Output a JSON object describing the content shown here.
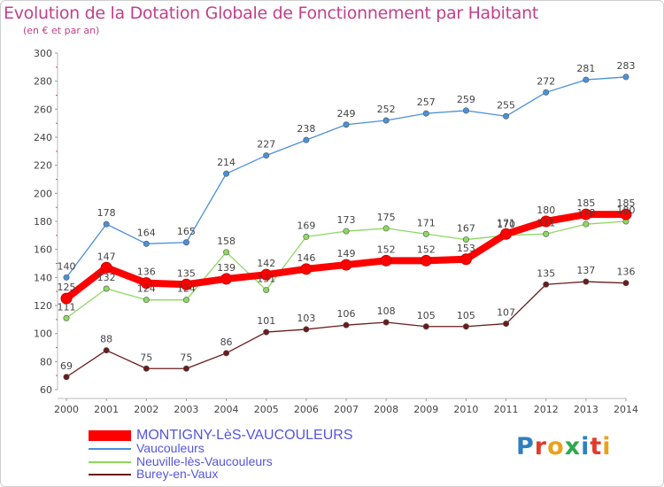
{
  "title": "Evolution de la Dotation Globale de Fonctionnement par Habitant",
  "subtitle": "(en € et par an)",
  "logo": {
    "text": "Proxiti",
    "colors": [
      "#2f7fc2",
      "#e23b2e",
      "#e8a21c",
      "#2fa84f",
      "#2f7fc2",
      "#e23b2e",
      "#e8a21c"
    ]
  },
  "chart_data": {
    "type": "line",
    "x": [
      "2000",
      "2001",
      "2002",
      "2003",
      "2004",
      "2005",
      "2006",
      "2007",
      "2008",
      "2009",
      "2010",
      "2011",
      "2012",
      "2013",
      "2014"
    ],
    "ylim": [
      60,
      300
    ],
    "yticks": [
      60,
      80,
      100,
      120,
      140,
      160,
      180,
      200,
      220,
      240,
      260,
      280,
      300
    ],
    "grid": false,
    "legend_position": "bottom-left",
    "series": [
      {
        "name": "MONTIGNY-LèS-VAUCOULEURS",
        "color": "#ff0000",
        "width": "thick",
        "values": [
          125,
          147,
          136,
          135,
          139,
          142,
          146,
          149,
          152,
          152,
          153,
          171,
          180,
          185,
          185
        ]
      },
      {
        "name": "Vaucouleurs",
        "color": "#4a90d9",
        "width": "thin",
        "values": [
          140,
          178,
          164,
          165,
          214,
          227,
          238,
          249,
          252,
          257,
          259,
          255,
          272,
          281,
          283
        ]
      },
      {
        "name": "Neuville-lès-Vaucouleurs",
        "color": "#8cd860",
        "width": "thin",
        "values": [
          111,
          132,
          124,
          124,
          158,
          131,
          169,
          173,
          175,
          171,
          167,
          170,
          171,
          178,
          180
        ]
      },
      {
        "name": "Burey-en-Vaux",
        "color": "#6a1c1c",
        "width": "thin",
        "values": [
          69,
          88,
          75,
          75,
          86,
          101,
          103,
          106,
          108,
          105,
          105,
          107,
          135,
          137,
          136
        ]
      }
    ]
  }
}
